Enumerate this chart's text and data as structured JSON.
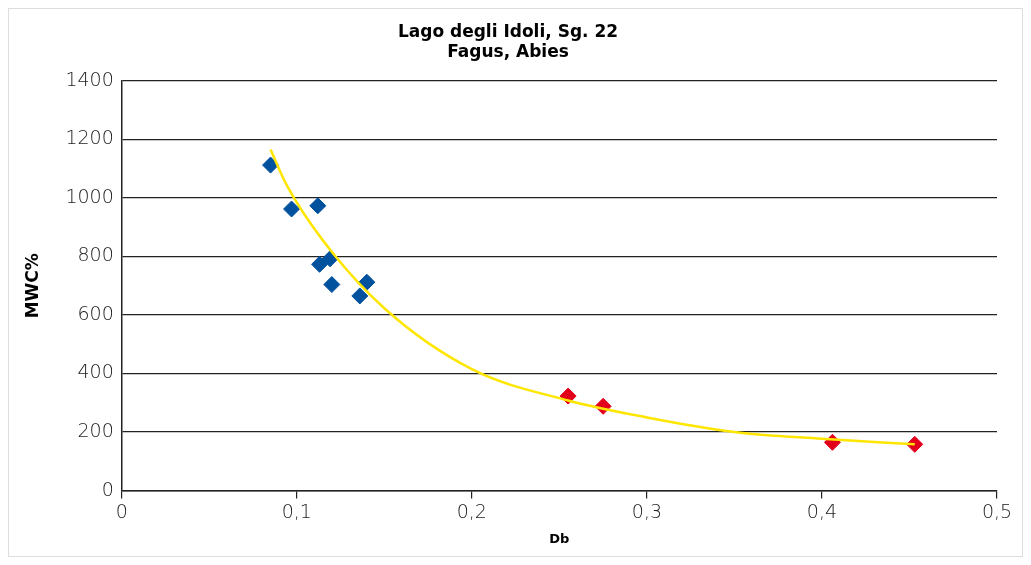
{
  "chart_data": {
    "type": "scatter",
    "title": [
      "Lago degli Idoli, Sg. 22",
      "Fagus, Abies"
    ],
    "xlabel": "Db",
    "ylabel": "MWC%",
    "xlim": [
      0,
      0.5
    ],
    "xticks": [
      0,
      {
        "value": 0.1,
        "label": "0,1"
      },
      {
        "value": 0.2,
        "label": "0,2"
      },
      {
        "value": 0.3,
        "label": "0,3"
      },
      {
        "value": 0.4,
        "label": "0,4"
      },
      {
        "value": 0.5,
        "label": "0,5"
      }
    ],
    "ylim": [
      0,
      1400
    ],
    "yticks": [
      0,
      200,
      400,
      600,
      800,
      1000,
      1200,
      1400
    ],
    "grid": "y",
    "legend": false,
    "marker": "diamond",
    "series": [
      {
        "color": "#00519e",
        "x": [
          0.085,
          0.097,
          0.112,
          0.113,
          0.119,
          0.12,
          0.136,
          0.14
        ],
        "values": [
          1112,
          962,
          973,
          773,
          792,
          704,
          665,
          712
        ]
      },
      {
        "color": "#e2001a",
        "x": [
          0.255,
          0.275,
          0.406,
          0.453
        ],
        "values": [
          323,
          288,
          165,
          158
        ]
      },
      {
        "type": "line",
        "color": "#ffe600",
        "marker": "none",
        "x": [
          0.085,
          0.094,
          0.115,
          0.15,
          0.2,
          0.255,
          0.3,
          0.35,
          0.4,
          0.453
        ],
        "values": [
          1165,
          1046,
          854,
          623,
          415,
          308,
          250,
          200,
          177,
          158
        ]
      }
    ]
  }
}
